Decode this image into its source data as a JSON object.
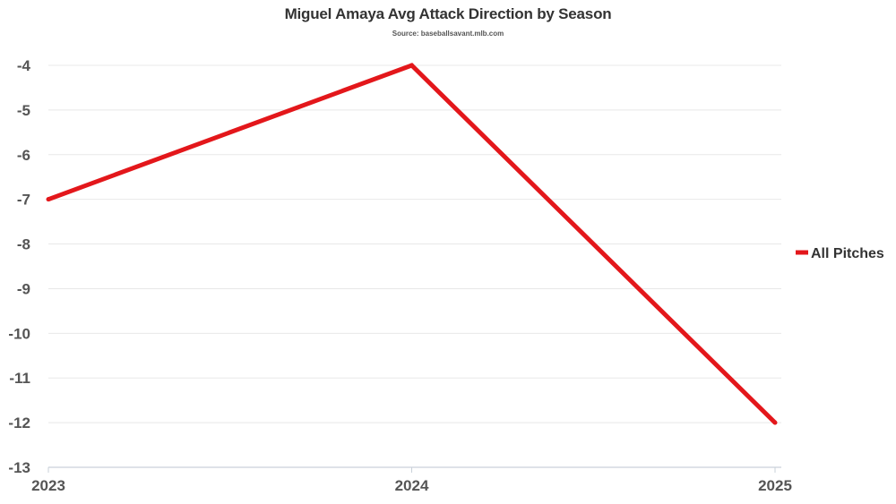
{
  "chart_data": {
    "type": "line",
    "title": "Miguel Amaya Avg Attack Direction by Season",
    "subtitle": "Source: baseballsavant.mlb.com",
    "x": [
      "2023",
      "2024",
      "2025"
    ],
    "series": [
      {
        "name": "All Pitches",
        "values": [
          -7,
          -4,
          -12
        ],
        "color": "#e3171b"
      }
    ],
    "ylim": [
      -13,
      -4
    ],
    "yticks": [
      -4,
      -5,
      -6,
      -7,
      -8,
      -9,
      -10,
      -11,
      -12,
      -13
    ],
    "grid": true,
    "legend_position": "right",
    "xlabel": "",
    "ylabel": ""
  }
}
